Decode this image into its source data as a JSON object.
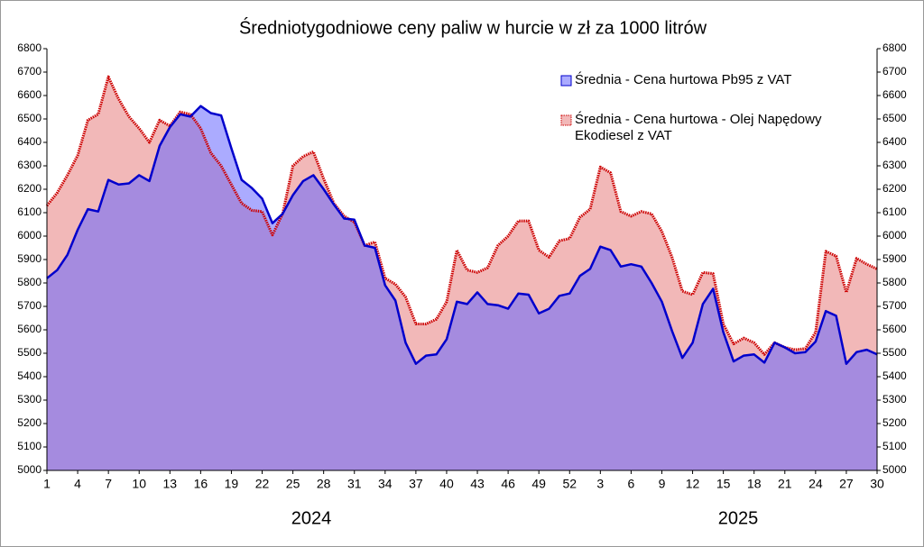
{
  "chart_data": {
    "type": "area",
    "title": "Średniotygodniowe ceny paliw w hurcie w zł za 1000 litrów",
    "categories": [
      "1",
      null,
      null,
      "4",
      null,
      null,
      "7",
      null,
      null,
      "10",
      null,
      null,
      "13",
      null,
      null,
      "16",
      null,
      null,
      "19",
      null,
      null,
      "22",
      null,
      null,
      "25",
      null,
      null,
      "28",
      null,
      null,
      "31",
      null,
      null,
      "34",
      null,
      null,
      "37",
      null,
      null,
      "40",
      null,
      null,
      "43",
      null,
      null,
      "46",
      null,
      null,
      "49",
      null,
      null,
      "52",
      null,
      null,
      "3",
      null,
      null,
      "6",
      null,
      null,
      "9",
      null,
      null,
      "12",
      null,
      null,
      "15",
      null,
      null,
      "18",
      null,
      null,
      "21",
      null,
      null,
      "24",
      null,
      null,
      "27",
      null,
      null,
      "30"
    ],
    "year_labels": [
      "2024",
      "2025"
    ],
    "series": [
      {
        "name": "Średnia - Cena hurtowa - Olej Napędowy Ekodiesel z VAT",
        "color": "#cc0000",
        "fill": "#f2b8b8",
        "values": [
          6130,
          6185,
          6260,
          6345,
          6495,
          6520,
          6680,
          6585,
          6510,
          6460,
          6400,
          6495,
          6470,
          6530,
          6520,
          6460,
          6355,
          6300,
          6220,
          6140,
          6110,
          6105,
          6005,
          6095,
          6300,
          6340,
          6360,
          6245,
          6140,
          6085,
          6060,
          5960,
          5975,
          5820,
          5795,
          5740,
          5625,
          5625,
          5645,
          5720,
          5940,
          5855,
          5845,
          5865,
          5960,
          6000,
          6065,
          6065,
          5940,
          5910,
          5980,
          5990,
          6080,
          6115,
          6295,
          6270,
          6105,
          6085,
          6105,
          6095,
          6020,
          5910,
          5765,
          5750,
          5845,
          5840,
          5625,
          5540,
          5565,
          5545,
          5495,
          5545,
          5525,
          5515,
          5520,
          5590,
          5935,
          5915,
          5760,
          5905,
          5880,
          5860
        ]
      },
      {
        "name": "Średnia - Cena hurtowa Pb95 z VAT",
        "color": "#0000cc",
        "fill": "#6666ff",
        "values": [
          5820,
          5855,
          5920,
          6027,
          6115,
          6105,
          6240,
          6220,
          6225,
          6260,
          6235,
          6385,
          6465,
          6520,
          6510,
          6555,
          6525,
          6515,
          6375,
          6240,
          6205,
          6160,
          6055,
          6095,
          6175,
          6235,
          6260,
          6200,
          6135,
          6075,
          6070,
          5960,
          5950,
          5790,
          5725,
          5545,
          5455,
          5490,
          5495,
          5560,
          5720,
          5710,
          5760,
          5710,
          5705,
          5690,
          5755,
          5750,
          5670,
          5690,
          5745,
          5755,
          5830,
          5860,
          5955,
          5940,
          5870,
          5880,
          5870,
          5800,
          5720,
          5595,
          5480,
          5545,
          5710,
          5775,
          5590,
          5465,
          5490,
          5495,
          5460,
          5545,
          5525,
          5500,
          5505,
          5550,
          5680,
          5660,
          5455,
          5505,
          5515,
          5495
        ]
      }
    ],
    "ylim": [
      5000,
      6800
    ],
    "yticks": [
      5000,
      5100,
      5200,
      5300,
      5400,
      5500,
      5600,
      5700,
      5800,
      5900,
      6000,
      6100,
      6200,
      6300,
      6400,
      6500,
      6600,
      6700,
      6800
    ],
    "y2lim": [
      5000,
      6800
    ],
    "y2ticks": [
      5000,
      5100,
      5200,
      5300,
      5400,
      5500,
      5600,
      5700,
      5800,
      5900,
      6000,
      6100,
      6200,
      6300,
      6400,
      6500,
      6600,
      6700,
      6800
    ],
    "grid": false
  }
}
